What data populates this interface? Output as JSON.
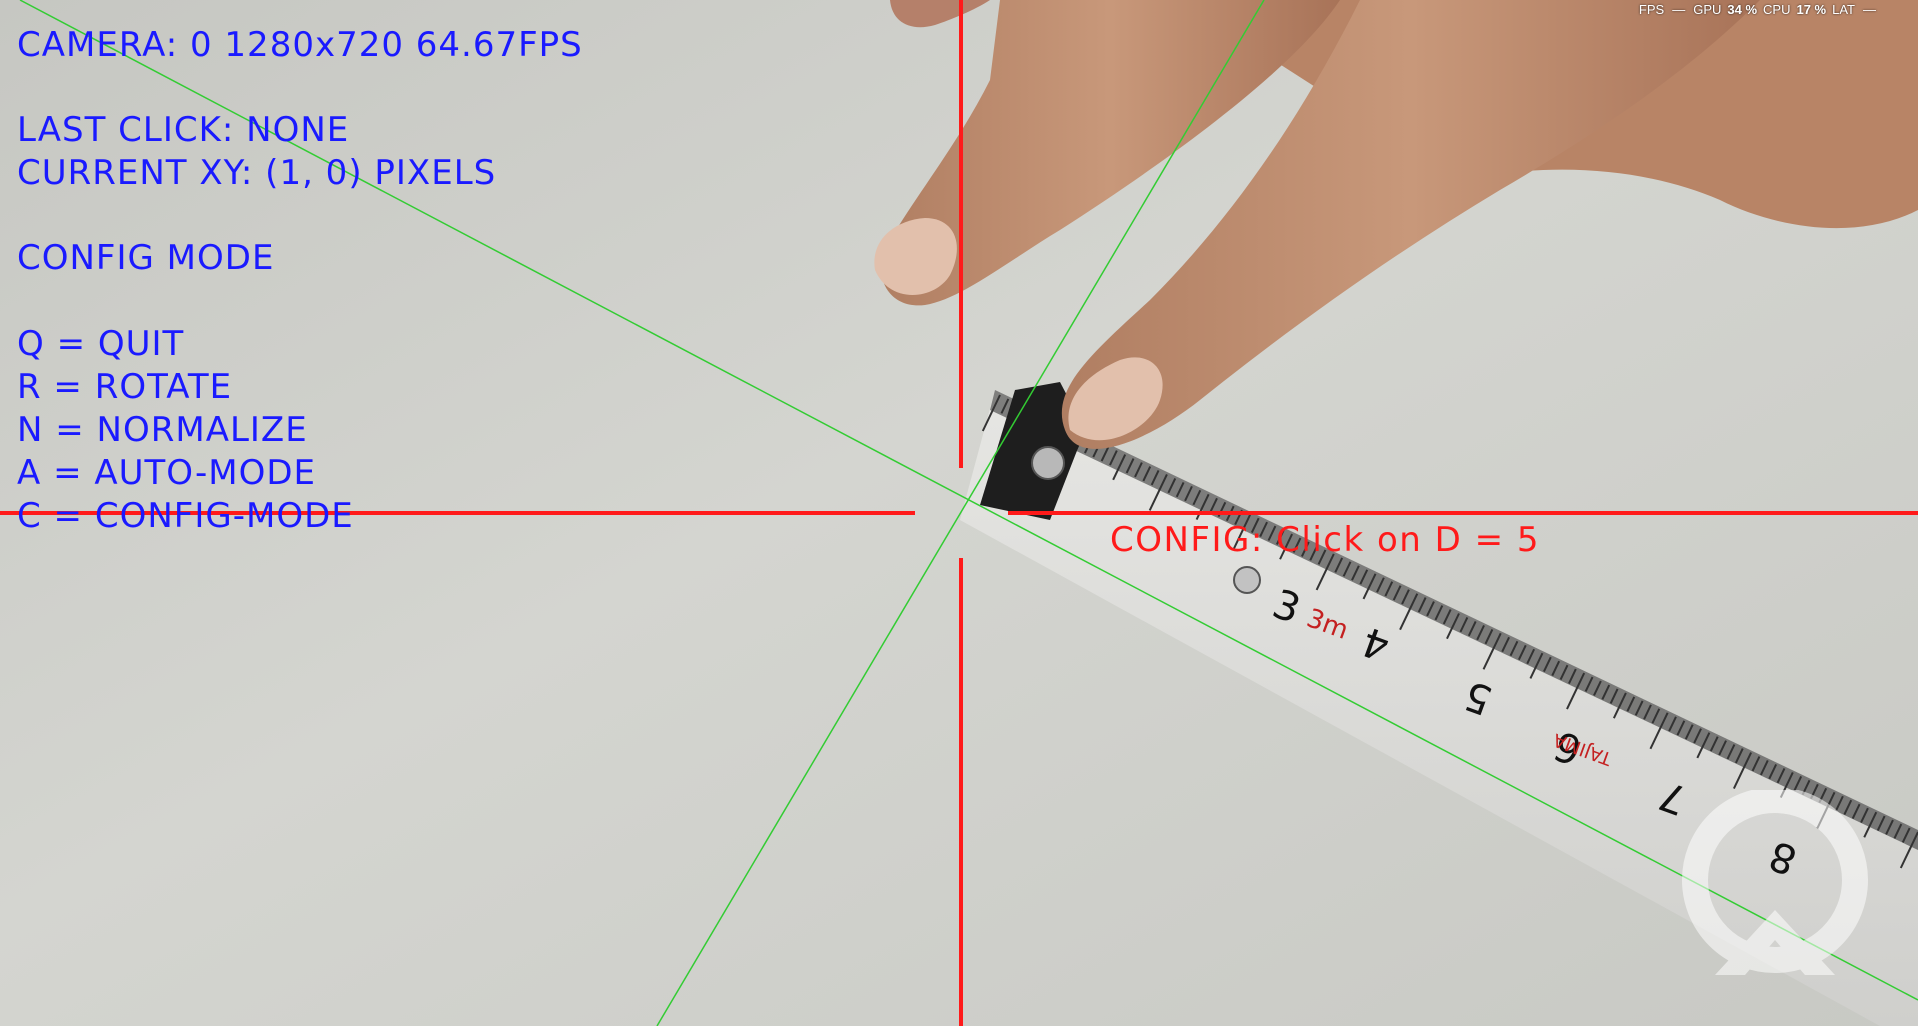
{
  "hud": {
    "camera_line": "CAMERA: 0 1280x720 64.67FPS",
    "last_click": "LAST CLICK: NONE",
    "current_xy": "CURRENT XY: (1, 0) PIXELS",
    "mode": "CONFIG MODE",
    "keys": [
      "Q = QUIT",
      "R = ROTATE",
      "N = NORMALIZE",
      "A = AUTO-MODE",
      "C = CONFIG-MODE"
    ],
    "config_prompt": "CONFIG: Click on D = 5"
  },
  "perf": {
    "fps_label": "FPS",
    "fps_value": "—",
    "gpu_label": "GPU",
    "gpu_value": "34 %",
    "cpu_label": "CPU",
    "cpu_value": "17 %",
    "lat_label": "LAT",
    "lat_value": "—"
  },
  "tape": {
    "numbers": [
      "3",
      "4",
      "5",
      "6",
      "7",
      "8"
    ],
    "marks": [
      "3m",
      "TAJIMA"
    ]
  },
  "colors": {
    "hud_text": "#1a1aff",
    "crosshair": "#ff1a1a",
    "guide_lines": "#33cc33",
    "background": "#cfd0cb"
  },
  "icons": {
    "watermark": "streaming-app-logo-icon"
  }
}
